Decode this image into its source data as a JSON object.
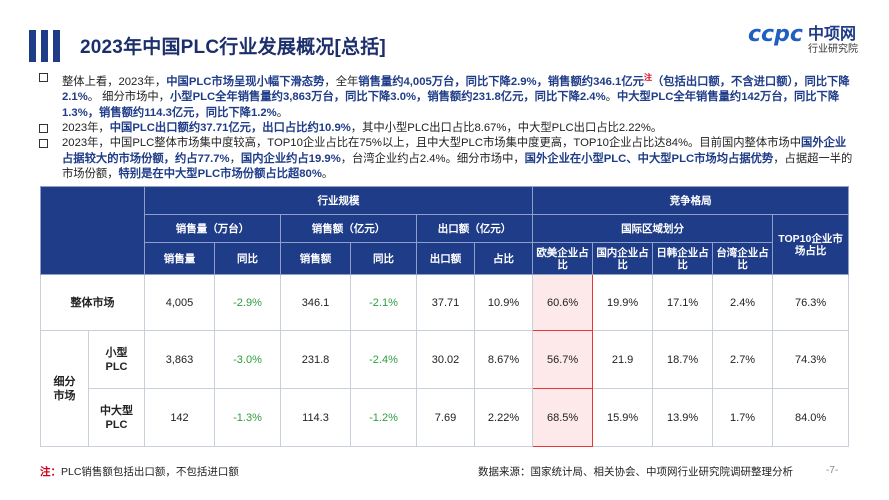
{
  "title": "2023年中国PLC行业发展概况[总括]",
  "logo": {
    "brand": "ccpc",
    "name": "中项网",
    "sub": "行业研究院"
  },
  "bullets": [
    [
      {
        "t": "整体上看，2023年，"
      },
      {
        "t": "中国PLC市场呈现小幅下滑态势",
        "h": true
      },
      {
        "t": "，全年"
      },
      {
        "t": "销售量约4,005万台，同比下降2.9%，销售额约346.1亿元",
        "h": true
      },
      {
        "t": "注",
        "r": true
      },
      {
        "t": "（包括出口额，不含进口额），同比下降2.1%",
        "h": true
      },
      {
        "t": "。  细分市场中，"
      },
      {
        "t": "小型PLC全年销售量约3,863万台，同比下降3.0%，销售额约231.8亿元，同比下降2.4%",
        "h": true
      },
      {
        "t": "。"
      },
      {
        "t": "中大型PLC全年销售量约142万台，同比下降1.3%，销售额约114.3亿元，同比下降1.2%",
        "h": true
      },
      {
        "t": "。"
      }
    ],
    [
      {
        "t": "2023年，"
      },
      {
        "t": "中国PLC出口额约37.71亿元，出口占比约10.9%",
        "h": true
      },
      {
        "t": "，其中小型PLC出口占比8.67%，中大型PLC出口占比2.22%。"
      }
    ],
    [
      {
        "t": "2023年，中国PLC整体市场集中度较高，TOP10企业占比在75%以上，且中大型PLC市场集中度更高，TOP10企业占比达84%。目前国内整体市场中"
      },
      {
        "t": "国外企业占据较大的市场份额，约占77.7%",
        "h": true
      },
      {
        "t": "，"
      },
      {
        "t": "国内企业约占19.9%",
        "h": true
      },
      {
        "t": "，台湾企业约占2.4%。细分市场中，"
      },
      {
        "t": "国外企业在小型PLC、中大型PLC市场均占据优势",
        "h": true
      },
      {
        "t": "，占据超一半的市场份额，"
      },
      {
        "t": "特别是在中大型PLC市场份额占比超80%",
        "h": true
      },
      {
        "t": "。"
      }
    ]
  ],
  "table": {
    "h_industry": "行业规模",
    "h_competition": "竞争格局",
    "h_sales_volume": "销售量（万台）",
    "h_sales_amount": "销售额（亿元）",
    "h_export": "出口额（亿元）",
    "h_region": "国际区域划分",
    "h_top10": "TOP10企业市场占比",
    "h_vol": "销售量",
    "h_yoy1": "同比",
    "h_amt": "销售额",
    "h_yoy2": "同比",
    "h_exp": "出口额",
    "h_share": "占比",
    "h_eu": "欧美企业占比",
    "h_cn": "国内企业占比",
    "h_jk": "日韩企业占比",
    "h_tw": "台湾企业占比",
    "seg_label": "细分市场",
    "rows": [
      {
        "label": "整体市场",
        "vol": "4,005",
        "vol_yoy": "-2.9%",
        "amt": "346.1",
        "amt_yoy": "-2.1%",
        "exp": "37.71",
        "exp_share": "10.9%",
        "eu": "60.6%",
        "cn": "19.9%",
        "jk": "17.1%",
        "tw": "2.4%",
        "top10": "76.3%"
      },
      {
        "label": "小型PLC",
        "vol": "3,863",
        "vol_yoy": "-3.0%",
        "amt": "231.8",
        "amt_yoy": "-2.4%",
        "exp": "30.02",
        "exp_share": "8.67%",
        "eu": "56.7%",
        "cn": "21.9",
        "jk": "18.7%",
        "tw": "2.7%",
        "top10": "74.3%"
      },
      {
        "label": "中大型PLC",
        "vol": "142",
        "vol_yoy": "-1.3%",
        "amt": "114.3",
        "amt_yoy": "-1.2%",
        "exp": "7.69",
        "exp_share": "2.22%",
        "eu": "68.5%",
        "cn": "15.9%",
        "jk": "13.9%",
        "tw": "1.7%",
        "top10": "84.0%"
      }
    ]
  },
  "footnote_label": "注：",
  "footnote_text": "PLC销售额包括出口额，不包括进口额",
  "source": "数据来源：国家统计局、相关协会、中项网行业研究院调研整理分析",
  "page_number": "-7-",
  "colors": {
    "brand": "#1f3c88",
    "negative": "#2e9e3f",
    "highlight_border": "#e53935"
  }
}
